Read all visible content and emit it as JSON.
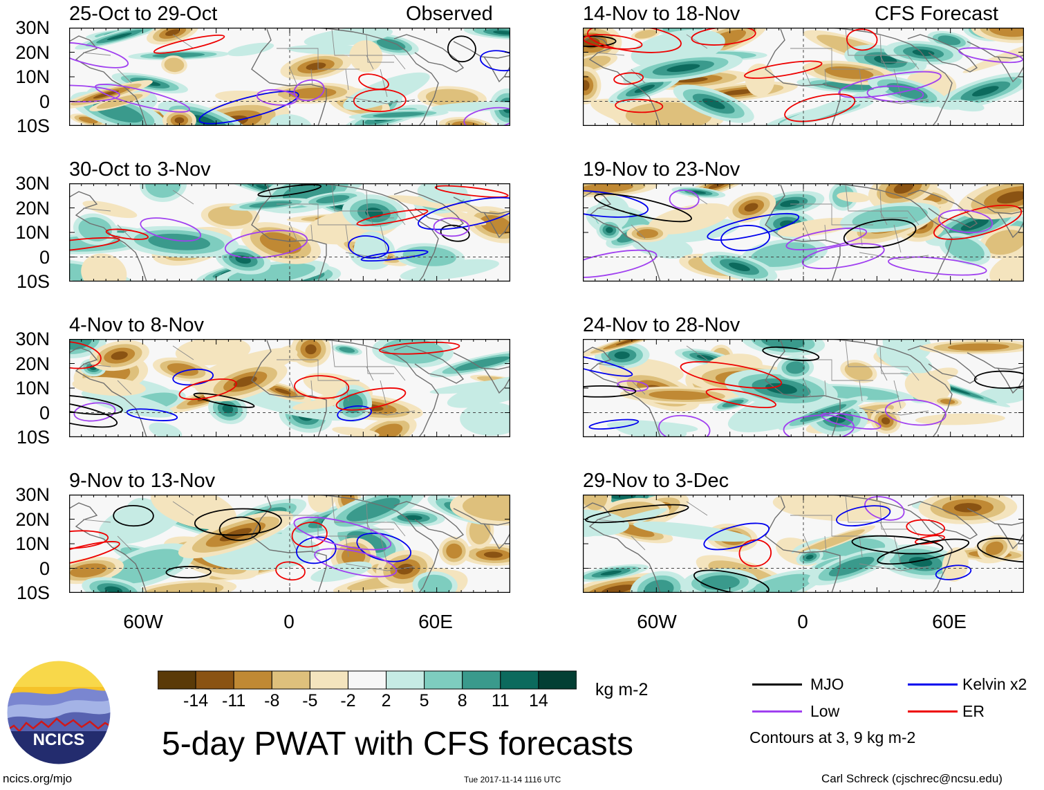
{
  "figure_title": "5-day PWAT with CFS forecasts",
  "observed_label": "Observed",
  "forecast_label": "CFS Forecast",
  "panels": {
    "observed": [
      "25-Oct to 29-Oct",
      "30-Oct to 3-Nov",
      "4-Nov to 8-Nov",
      "9-Nov to 13-Nov"
    ],
    "forecast": [
      "14-Nov to 18-Nov",
      "19-Nov to 23-Nov",
      "24-Nov to 28-Nov",
      "29-Nov to 3-Dec"
    ]
  },
  "lat_labels": [
    "30N",
    "20N",
    "10N",
    "0",
    "10S"
  ],
  "lon_labels": [
    "60W",
    "0",
    "60E"
  ],
  "colorbar": {
    "unit": "kg m-2",
    "ticks": [
      "-14",
      "-11",
      "-8",
      "-5",
      "-2",
      "2",
      "5",
      "8",
      "11",
      "14"
    ],
    "colors": [
      "#5a3a08",
      "#8a5313",
      "#c08934",
      "#dec07c",
      "#f4e4be",
      "#f7f7f7",
      "#c6ebe4",
      "#7ecdbf",
      "#3a9a8c",
      "#0c6a5d",
      "#033f34"
    ]
  },
  "legend": {
    "items": [
      {
        "label": "MJO",
        "color": "#000000"
      },
      {
        "label": "Kelvin x2",
        "color": "#0000ee"
      },
      {
        "label": "Low",
        "color": "#a040f0"
      },
      {
        "label": "ER",
        "color": "#ee0000"
      }
    ],
    "note": "Contours at 3, 9 kg m-2"
  },
  "logo_text": "NCICS",
  "url": "ncics.org/mjo",
  "timestamp": "Tue 2017-11-14 1116 UTC",
  "credit": "Carl Schreck (cjschrec@ncsu.edu)"
}
